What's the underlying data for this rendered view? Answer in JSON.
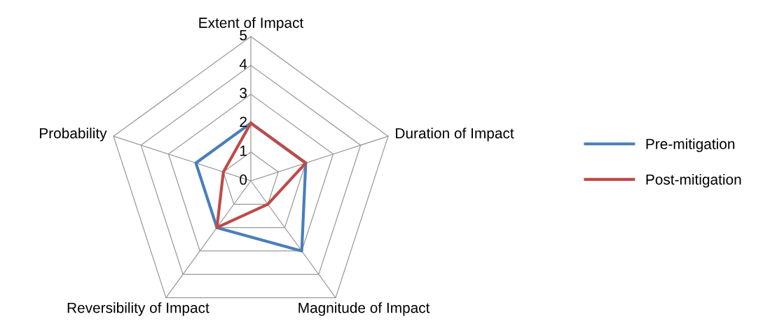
{
  "chart_data": {
    "type": "radar",
    "categories": [
      "Extent of Impact",
      "Duration of Impact",
      "Magnitude of Impact",
      "Reversibility of Impact",
      "Probability"
    ],
    "series": [
      {
        "name": "Pre-mitigation",
        "color": "#4a7ebb",
        "values": [
          2,
          2,
          3,
          2,
          2
        ]
      },
      {
        "name": "Post-mitigation",
        "color": "#be4b48",
        "values": [
          2,
          2,
          1,
          2,
          1
        ]
      }
    ],
    "ylim": [
      0,
      5
    ],
    "yticks": [
      0,
      1,
      2,
      3,
      4,
      5
    ],
    "grid": true,
    "legend": "right",
    "marker": "none",
    "line_style": "solid"
  }
}
